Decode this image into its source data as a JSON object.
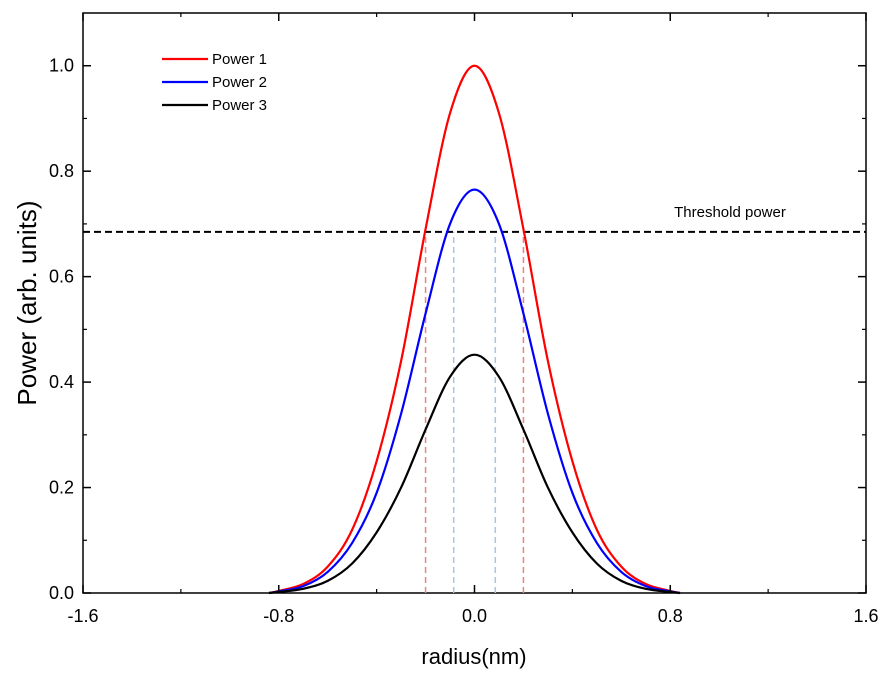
{
  "chart_data": {
    "type": "line",
    "title": "",
    "xlabel": "radius(nm)",
    "ylabel": "Power (arb. units)",
    "xlim": [
      -1.6,
      1.6
    ],
    "ylim": [
      0.0,
      1.1
    ],
    "x_ticks": [
      -1.6,
      -0.8,
      0.0,
      0.8,
      1.6
    ],
    "x_tick_labels": [
      "-1.6",
      "-0.8",
      "0.0",
      "0.8",
      "1.6"
    ],
    "y_ticks": [
      0.0,
      0.2,
      0.4,
      0.6,
      0.8,
      1.0
    ],
    "y_tick_labels": [
      "0.0",
      "0.2",
      "0.4",
      "0.6",
      "0.8",
      "1.0"
    ],
    "grid": false,
    "legend_position": "top-left",
    "series": [
      {
        "name": "Power 1",
        "color": "#ff0000",
        "x": [
          -0.84,
          -0.8,
          -0.7,
          -0.6,
          -0.5,
          -0.4,
          -0.3,
          -0.2,
          -0.1,
          0.0,
          0.1,
          0.2,
          0.3,
          0.4,
          0.5,
          0.6,
          0.7,
          0.8,
          0.84
        ],
        "y": [
          0.0,
          0.004,
          0.017,
          0.05,
          0.12,
          0.25,
          0.44,
          0.69,
          0.91,
          1.0,
          0.91,
          0.69,
          0.44,
          0.25,
          0.12,
          0.05,
          0.017,
          0.004,
          0.0
        ]
      },
      {
        "name": "Power 2",
        "color": "#0000ff",
        "x": [
          -0.84,
          -0.8,
          -0.7,
          -0.6,
          -0.5,
          -0.4,
          -0.3,
          -0.2,
          -0.1,
          0.0,
          0.1,
          0.2,
          0.3,
          0.4,
          0.5,
          0.6,
          0.7,
          0.8,
          0.84
        ],
        "y": [
          0.0,
          0.003,
          0.013,
          0.04,
          0.095,
          0.19,
          0.34,
          0.53,
          0.7,
          0.765,
          0.7,
          0.53,
          0.34,
          0.19,
          0.095,
          0.04,
          0.013,
          0.003,
          0.0
        ]
      },
      {
        "name": "Power 3",
        "color": "#000000",
        "x": [
          -0.84,
          -0.8,
          -0.7,
          -0.6,
          -0.5,
          -0.4,
          -0.3,
          -0.2,
          -0.1,
          0.0,
          0.1,
          0.2,
          0.3,
          0.4,
          0.5,
          0.6,
          0.7,
          0.8,
          0.84
        ],
        "y": [
          0.0,
          0.002,
          0.008,
          0.023,
          0.056,
          0.115,
          0.2,
          0.31,
          0.41,
          0.452,
          0.41,
          0.31,
          0.2,
          0.115,
          0.056,
          0.023,
          0.008,
          0.002,
          0.0
        ]
      }
    ],
    "threshold": {
      "label": "Threshold power",
      "y": 0.685,
      "color": "#000000",
      "style": "dashed"
    },
    "markers": [
      {
        "x": -0.2,
        "y_max": 0.685,
        "color": "#f08080",
        "style": "dashed"
      },
      {
        "x": 0.2,
        "y_max": 0.685,
        "color": "#f08080",
        "style": "dashed"
      },
      {
        "x": -0.085,
        "y_max": 0.685,
        "color": "#a8c4e6",
        "style": "dashed"
      },
      {
        "x": 0.085,
        "y_max": 0.685,
        "color": "#a8c4e6",
        "style": "dashed"
      }
    ]
  }
}
